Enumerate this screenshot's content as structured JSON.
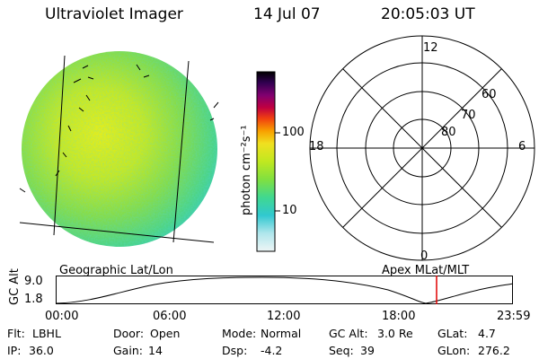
{
  "header": {
    "title": "Ultraviolet Imager",
    "date": "14 Jul 07",
    "time": "20:05:03 UT"
  },
  "colorbar": {
    "unit_label": "photon cm⁻²s⁻¹",
    "ticks": [
      "100",
      "10"
    ],
    "scale": "log",
    "colors": [
      "#e8f4f4",
      "#a0e0e8",
      "#30c8d0",
      "#40d890",
      "#80e040",
      "#c0e820",
      "#f0e020",
      "#f8a000",
      "#f04010",
      "#c00040",
      "#800070",
      "#300050",
      "#000000"
    ]
  },
  "polar": {
    "clock_labels": [
      "12",
      "18",
      "6",
      "0"
    ],
    "lat_labels": [
      "60",
      "70",
      "80"
    ]
  },
  "timeline": {
    "left_label": "Geographic Lat/Lon",
    "right_label": "Apex MLat/MLT",
    "axis_title": "GC Alt",
    "y_ticks": [
      "9.0",
      "1.8"
    ],
    "x_ticks": [
      "00:00",
      "06:00",
      "12:00",
      "18:00",
      "23:59"
    ],
    "marker_color": "#e00000"
  },
  "footer": {
    "row1": [
      {
        "key": "Flt:",
        "val": "LBHL"
      },
      {
        "key": "Door:",
        "val": "Open"
      },
      {
        "key": "Mode:",
        "val": "Normal"
      },
      {
        "key": "GC Alt:",
        "val": "3.0 Re"
      },
      {
        "key": "GLat:",
        "val": "4.7"
      }
    ],
    "row2": [
      {
        "key": "IP:",
        "val": "36.0"
      },
      {
        "key": "Gain:",
        "val": "14"
      },
      {
        "key": "Dsp:",
        "val": "-4.2"
      },
      {
        "key": "Seq:",
        "val": "39"
      },
      {
        "key": "GLon:",
        "val": "276.2"
      }
    ]
  }
}
